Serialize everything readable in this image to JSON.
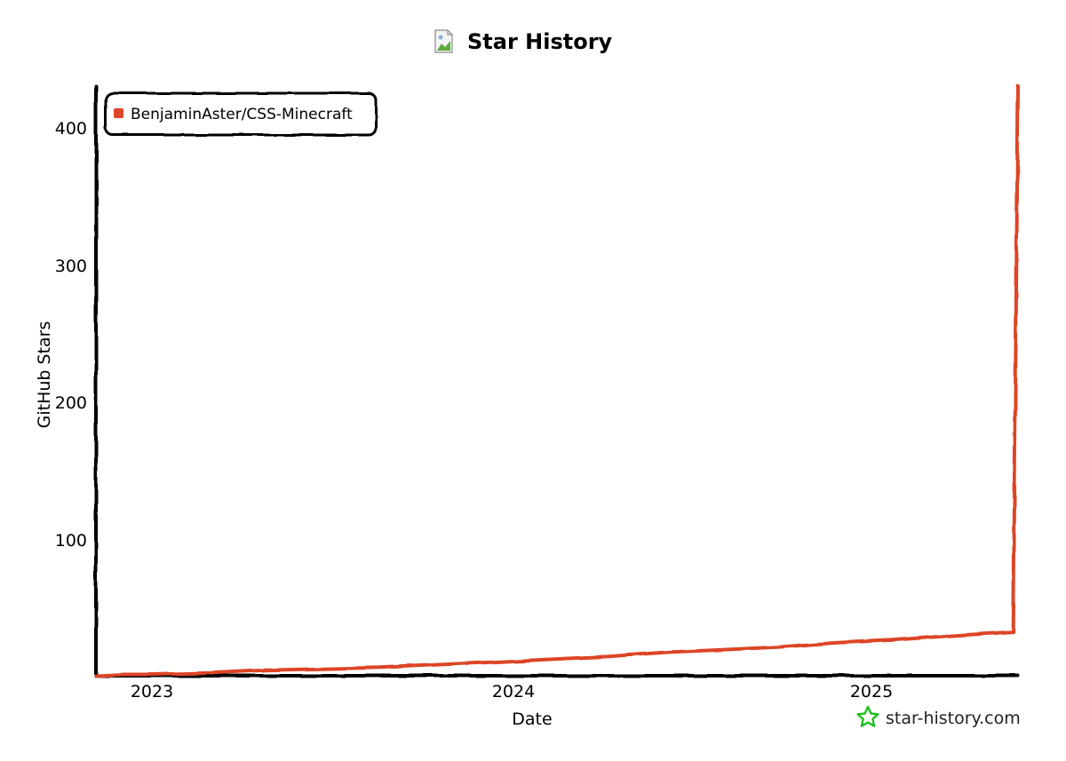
{
  "chart_data": {
    "type": "line",
    "title": "Star History",
    "xlabel": "Date",
    "ylabel": "GitHub Stars",
    "x_tick_labels": [
      "2023",
      "2024",
      "2025"
    ],
    "y_tick_labels": [
      "100",
      "200",
      "300",
      "400"
    ],
    "ylim": [
      0,
      430
    ],
    "xlim": [
      "2022-11-01",
      "2025-07-15"
    ],
    "grid": false,
    "legend_position": "top-left",
    "series": [
      {
        "name": "BenjaminAster/CSS-Minecraft",
        "color": "#dd4528",
        "points": [
          {
            "x": "2022-11-01",
            "y": 0
          },
          {
            "x": "2022-12-01",
            "y": 1
          },
          {
            "x": "2023-01-01",
            "y": 1
          },
          {
            "x": "2023-03-01",
            "y": 2
          },
          {
            "x": "2023-05-01",
            "y": 4
          },
          {
            "x": "2023-07-01",
            "y": 5
          },
          {
            "x": "2023-09-01",
            "y": 6
          },
          {
            "x": "2023-11-01",
            "y": 8
          },
          {
            "x": "2024-01-01",
            "y": 10
          },
          {
            "x": "2024-03-01",
            "y": 12
          },
          {
            "x": "2024-05-01",
            "y": 14
          },
          {
            "x": "2024-07-01",
            "y": 17
          },
          {
            "x": "2024-09-01",
            "y": 19
          },
          {
            "x": "2024-11-01",
            "y": 21
          },
          {
            "x": "2025-01-01",
            "y": 24
          },
          {
            "x": "2025-03-01",
            "y": 26
          },
          {
            "x": "2025-05-01",
            "y": 29
          },
          {
            "x": "2025-07-10",
            "y": 32
          },
          {
            "x": "2025-07-15",
            "y": 430
          }
        ]
      }
    ]
  },
  "branding": {
    "site": "star-history.com",
    "star_icon": "star-outline-icon",
    "star_color": "#22c022",
    "title_icon": "broken-image-icon"
  }
}
